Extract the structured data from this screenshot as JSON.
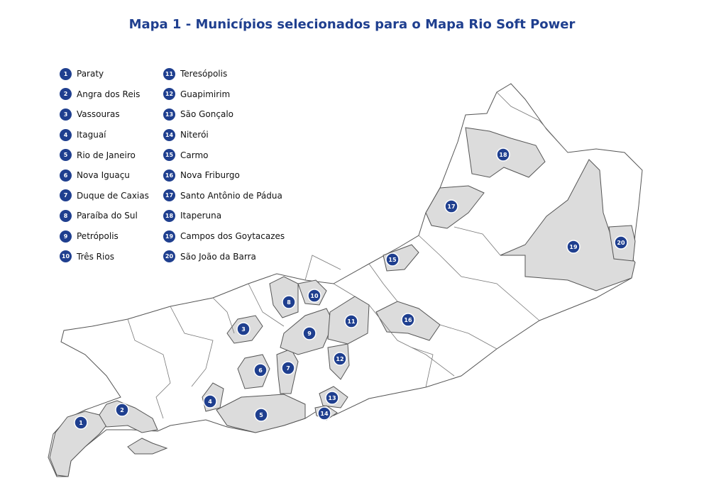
{
  "title": "Mapa 1 - Municípios selecionados para o Mapa Rio Soft Power",
  "colors": {
    "accent": "#1f3f8f",
    "highlight_fill": "#dcdcdc",
    "border": "#555555"
  },
  "municipalities": [
    {
      "n": "1",
      "name": "Paraty"
    },
    {
      "n": "2",
      "name": "Angra dos Reis"
    },
    {
      "n": "3",
      "name": "Vassouras"
    },
    {
      "n": "4",
      "name": "Itaguaí"
    },
    {
      "n": "5",
      "name": "Rio de Janeiro"
    },
    {
      "n": "6",
      "name": "Nova Iguaçu"
    },
    {
      "n": "7",
      "name": "Duque de Caxias"
    },
    {
      "n": "8",
      "name": "Paraíba do Sul"
    },
    {
      "n": "9",
      "name": "Petrópolis"
    },
    {
      "n": "10",
      "name": "Três Rios"
    },
    {
      "n": "11",
      "name": "Teresópolis"
    },
    {
      "n": "12",
      "name": "Guapimirim"
    },
    {
      "n": "13",
      "name": "São Gonçalo"
    },
    {
      "n": "14",
      "name": "Niterói"
    },
    {
      "n": "15",
      "name": "Carmo"
    },
    {
      "n": "16",
      "name": "Nova Friburgo"
    },
    {
      "n": "17",
      "name": "Santo Antônio de Pádua"
    },
    {
      "n": "18",
      "name": "Itaperuna"
    },
    {
      "n": "19",
      "name": "Campos dos Goytacazes"
    },
    {
      "n": "20",
      "name": "São João da Barra"
    }
  ]
}
